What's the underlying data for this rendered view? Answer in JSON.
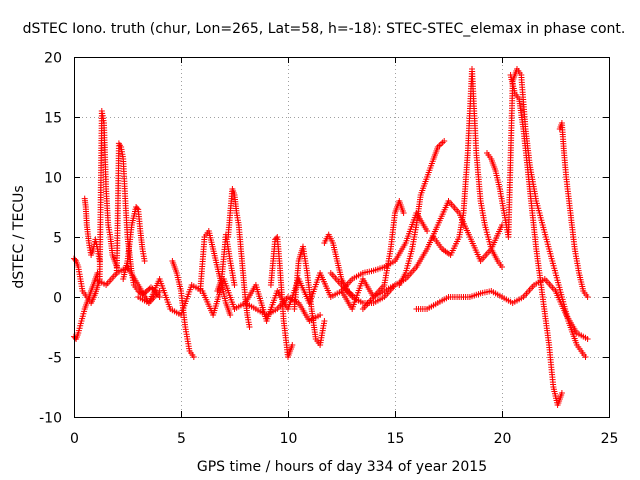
{
  "chart_data": {
    "type": "scatter",
    "title": "dSTEC Iono. truth (chur, Lon=265, Lat=58, h=-18): STEC-STEC_elemax in phase cont.",
    "xlabel": "GPS time / hours of day 334 of year 2015",
    "ylabel": "dSTEC  / TECUs",
    "xlim": [
      0,
      25
    ],
    "ylim": [
      -10,
      20
    ],
    "xticks": [
      "0",
      "5",
      "10",
      "15",
      "20",
      "25"
    ],
    "yticks": [
      "-10",
      "-5",
      "0",
      "5",
      "10",
      "15",
      "20"
    ],
    "xtick_values": [
      0,
      5,
      10,
      15,
      20,
      25
    ],
    "ytick_values": [
      -10,
      -5,
      0,
      5,
      10,
      15,
      20
    ],
    "grid": true,
    "marker": "plus",
    "color": "#ff0000",
    "series": [
      {
        "x": [
          0.0,
          0.1,
          0.2,
          0.3,
          0.4,
          0.6,
          0.8,
          1.0,
          1.2,
          1.3,
          1.4,
          1.5,
          1.6,
          1.7,
          1.8,
          2.0
        ],
        "y": [
          3.2,
          3.0,
          2.5,
          1.5,
          0.5,
          0.0,
          -0.5,
          0.3,
          1.5,
          15.5,
          14.5,
          9.0,
          6.0,
          5.0,
          3.5,
          2.5
        ]
      },
      {
        "x": [
          0.0,
          0.1,
          0.2,
          0.35,
          0.5,
          0.7,
          0.9,
          1.1
        ],
        "y": [
          -3.3,
          -3.5,
          -3.0,
          -2.0,
          -1.0,
          0.0,
          1.0,
          2.0
        ]
      },
      {
        "x": [
          0.5,
          0.55,
          0.6,
          0.7,
          0.8,
          0.9,
          1.0,
          1.1,
          1.2
        ],
        "y": [
          8.2,
          7.5,
          6.0,
          4.5,
          3.5,
          4.0,
          4.8,
          4.0,
          3.0
        ]
      },
      {
        "x": [
          2.0,
          2.1,
          2.2,
          2.3,
          2.4,
          2.5,
          2.6,
          2.7,
          2.8,
          3.0,
          3.2,
          3.4,
          3.6,
          3.8,
          4.0
        ],
        "y": [
          2.0,
          12.8,
          12.5,
          11.5,
          8.0,
          5.0,
          3.5,
          2.0,
          1.0,
          0.5,
          0.2,
          0.5,
          0.8,
          0.5,
          0.0
        ]
      },
      {
        "x": [
          2.3,
          2.5,
          2.7,
          2.9,
          3.0,
          3.1,
          3.2,
          3.3
        ],
        "y": [
          1.5,
          3.0,
          6.0,
          7.5,
          7.3,
          5.5,
          4.0,
          3.0
        ]
      },
      {
        "x": [
          3.0,
          3.5,
          4.0,
          4.5,
          5.0,
          5.5,
          6.0,
          6.5,
          7.0,
          7.5,
          8.0,
          8.5,
          9.0,
          9.5,
          10.0,
          10.5,
          11.0,
          11.5,
          12.0,
          12.5,
          13.0,
          13.5,
          14.0,
          14.5,
          15.0
        ],
        "y": [
          0.0,
          -0.5,
          1.5,
          -1.0,
          -1.5,
          1.0,
          0.5,
          -1.5,
          1.5,
          -1.0,
          -0.5,
          1.0,
          -2.0,
          0.5,
          -1.0,
          1.5,
          -0.5,
          2.0,
          0.0,
          0.5,
          -1.0,
          1.5,
          0.0,
          0.5,
          1.0
        ]
      },
      {
        "x": [
          4.6,
          4.8,
          5.0,
          5.2,
          5.4,
          5.6
        ],
        "y": [
          3.0,
          2.0,
          0.5,
          -2.5,
          -4.5,
          -5.0
        ]
      },
      {
        "x": [
          5.9,
          6.1,
          6.3,
          6.5,
          6.7,
          6.9,
          7.1,
          7.3
        ],
        "y": [
          0.5,
          5.0,
          5.5,
          4.0,
          2.5,
          1.0,
          -0.5,
          -1.5
        ]
      },
      {
        "x": [
          7.2,
          7.4,
          7.5,
          7.6,
          7.7,
          7.8,
          7.9,
          8.0,
          8.1,
          8.2
        ],
        "y": [
          5.0,
          9.0,
          8.5,
          7.0,
          6.0,
          4.0,
          2.0,
          0.0,
          -1.5,
          -2.5
        ]
      },
      {
        "x": [
          6.7,
          6.9,
          7.1,
          7.3,
          7.5
        ],
        "y": [
          0.5,
          1.5,
          5.2,
          3.0,
          1.0
        ]
      },
      {
        "x": [
          9.2,
          9.4,
          9.5,
          9.6,
          9.8,
          10.0,
          10.2
        ],
        "y": [
          1.0,
          4.8,
          5.0,
          3.0,
          -2.0,
          -5.0,
          -4.0
        ]
      },
      {
        "x": [
          10.3,
          10.5,
          10.7,
          10.9,
          11.1,
          11.3,
          11.5,
          11.7
        ],
        "y": [
          -1.0,
          3.0,
          4.2,
          2.0,
          -1.0,
          -3.5,
          -4.0,
          -2.0
        ]
      },
      {
        "x": [
          11.7,
          11.9,
          12.1,
          12.3,
          12.5,
          12.8,
          13.1
        ],
        "y": [
          4.5,
          5.2,
          4.5,
          3.0,
          1.5,
          0.5,
          0.0
        ]
      },
      {
        "x": [
          12.0,
          12.5,
          13.0,
          13.5,
          14.0,
          14.5,
          15.0,
          15.5,
          16.0,
          16.5,
          17.0,
          17.5,
          18.0,
          18.5,
          19.0,
          19.5,
          20.0
        ],
        "y": [
          2.0,
          1.0,
          0.0,
          -0.5,
          -0.5,
          0.0,
          1.0,
          1.5,
          2.5,
          4.0,
          6.0,
          8.0,
          7.0,
          5.0,
          3.0,
          4.0,
          6.0
        ]
      },
      {
        "x": [
          13.5,
          14.0,
          14.5,
          14.8,
          15.0,
          15.2,
          15.4
        ],
        "y": [
          -1.0,
          0.0,
          1.0,
          4.0,
          7.0,
          8.0,
          7.0
        ]
      },
      {
        "x": [
          15.2,
          15.5,
          15.8,
          16.0,
          16.2,
          16.5,
          16.8,
          17.0,
          17.3
        ],
        "y": [
          1.0,
          2.0,
          4.0,
          6.0,
          8.5,
          10.0,
          11.5,
          12.5,
          13.0
        ]
      },
      {
        "x": [
          16.8,
          17.2,
          17.6,
          18.0,
          18.2,
          18.4,
          18.6,
          18.8,
          19.0,
          19.2,
          19.5,
          19.8,
          20.0
        ],
        "y": [
          5.0,
          4.0,
          3.5,
          5.0,
          7.0,
          12.0,
          19.0,
          12.0,
          8.0,
          6.0,
          4.0,
          3.0,
          2.5
        ]
      },
      {
        "x": [
          16.0,
          16.5,
          17.0,
          17.5,
          18.0,
          18.5,
          19.0,
          19.5,
          20.0,
          20.5,
          21.0,
          21.5,
          22.0,
          22.5,
          23.0,
          23.5,
          24.0
        ],
        "y": [
          -1.0,
          -1.0,
          -0.5,
          0.0,
          0.0,
          0.0,
          0.3,
          0.5,
          0.0,
          -0.5,
          0.0,
          1.0,
          1.5,
          0.5,
          -1.5,
          -3.0,
          -3.5
        ]
      },
      {
        "x": [
          19.3,
          19.5,
          19.7,
          19.9,
          20.1,
          20.3,
          20.5,
          20.7,
          20.9,
          21.1,
          21.3,
          21.6,
          21.9,
          22.2,
          22.5,
          22.8,
          23.1,
          23.5,
          23.9
        ],
        "y": [
          12.0,
          11.5,
          10.5,
          9.0,
          7.0,
          5.0,
          18.0,
          19.0,
          18.5,
          14.0,
          11.0,
          8.0,
          6.0,
          4.0,
          2.0,
          0.0,
          -2.0,
          -4.0,
          -5.0
        ]
      },
      {
        "x": [
          20.4,
          20.6,
          20.8,
          21.0,
          21.3,
          21.6,
          21.9,
          22.2,
          22.4,
          22.6,
          22.8
        ],
        "y": [
          18.5,
          17.0,
          16.5,
          14.0,
          9.0,
          4.0,
          0.0,
          -4.0,
          -7.5,
          -9.0,
          -8.0
        ]
      },
      {
        "x": [
          22.7,
          22.8,
          22.9,
          23.0,
          23.2,
          23.4,
          23.6,
          23.8,
          24.0
        ],
        "y": [
          14.0,
          14.5,
          12.0,
          10.0,
          7.0,
          4.0,
          2.0,
          0.5,
          0.0
        ]
      },
      {
        "x": [
          12.5,
          13.0,
          13.5,
          14.0,
          14.5,
          15.0,
          15.5,
          16.0,
          16.5
        ],
        "y": [
          0.5,
          1.5,
          2.0,
          2.2,
          2.5,
          3.0,
          4.5,
          7.0,
          5.5
        ]
      },
      {
        "x": [
          1.0,
          1.5,
          2.0,
          2.5,
          3.0,
          3.5,
          4.0
        ],
        "y": [
          1.5,
          1.0,
          2.0,
          2.5,
          1.0,
          -0.5,
          0.5
        ]
      },
      {
        "x": [
          8.0,
          8.5,
          9.0,
          9.5,
          10.0,
          10.5,
          11.0,
          11.5
        ],
        "y": [
          -0.5,
          -1.0,
          -1.5,
          -1.0,
          0.0,
          -0.5,
          -2.0,
          -1.5
        ]
      }
    ]
  }
}
